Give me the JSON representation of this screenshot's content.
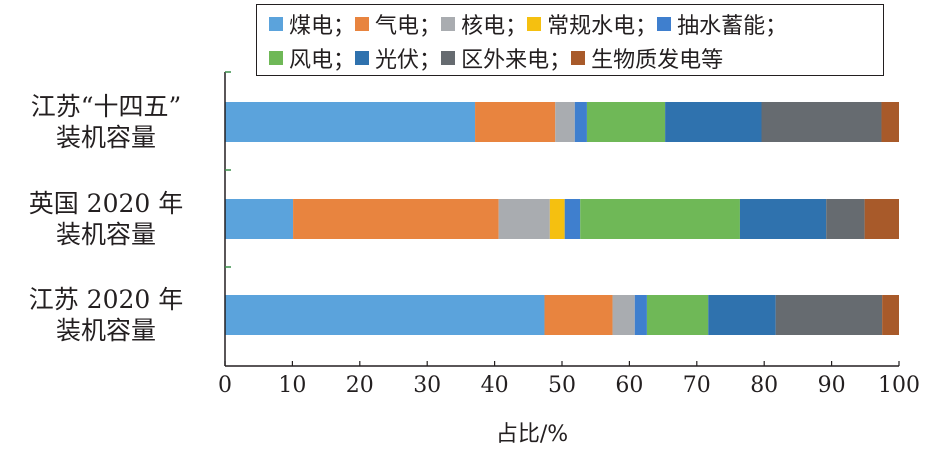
{
  "chart_data": {
    "type": "bar",
    "orientation": "horizontal",
    "stacked": true,
    "categories": [
      [
        "江苏“十四五”",
        "装机容量"
      ],
      [
        "英国 2020 年",
        "装机容量"
      ],
      [
        "江苏 2020 年",
        "装机容量"
      ]
    ],
    "series": [
      {
        "name": "煤电",
        "color": "#5ba3dc",
        "values": [
          37.1,
          10.1,
          47.4
        ]
      },
      {
        "name": "气电",
        "color": "#e8843f",
        "values": [
          11.9,
          30.5,
          10.1
        ]
      },
      {
        "name": "核电",
        "color": "#a9acb0",
        "values": [
          2.9,
          7.6,
          3.3
        ]
      },
      {
        "name": "常规水电",
        "color": "#f5c010",
        "values": [
          0,
          2.2,
          0
        ]
      },
      {
        "name": "抽水蓄能",
        "color": "#3f7fce",
        "values": [
          1.8,
          2.3,
          1.8
        ]
      },
      {
        "name": "风电",
        "color": "#6fb857",
        "values": [
          11.6,
          23.7,
          9.1
        ]
      },
      {
        "name": "光伏",
        "color": "#2f72ae",
        "values": [
          14.3,
          12.8,
          10.0
        ]
      },
      {
        "name": "区外来电",
        "color": "#666b70",
        "values": [
          17.8,
          5.7,
          15.8
        ]
      },
      {
        "name": "生物质发电等",
        "color": "#a85a2a",
        "values": [
          2.6,
          5.1,
          2.5
        ]
      }
    ],
    "xlabel": "占比/%",
    "xlim": [
      0,
      100
    ],
    "xticks": [
      0,
      10,
      20,
      30,
      40,
      50,
      60,
      70,
      80,
      90,
      100
    ],
    "legend_position": "top",
    "grid": false
  }
}
